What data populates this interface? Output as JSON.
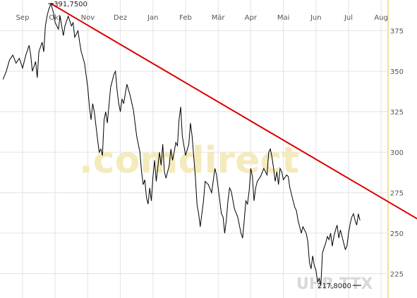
{
  "chart_data": {
    "type": "line",
    "title": "",
    "xlabel": "",
    "ylabel": "",
    "x_ticks": [
      "Sep",
      "Okt",
      "Nov",
      "Dez",
      "Jan",
      "Feb",
      "Mär",
      "Apr",
      "Mai",
      "Jun",
      "Jul",
      "Aug"
    ],
    "y_ticks": [
      225,
      250,
      275,
      300,
      325,
      350,
      375
    ],
    "ylim": [
      210,
      394
    ],
    "grid": true,
    "legend": "none",
    "watermark": ".comdirect",
    "instrument_label": "UHR TTX",
    "annotations": [
      {
        "text": "391,7500",
        "kind": "max",
        "value": 391.75,
        "x_month": 0.87
      },
      {
        "text": "217,8000",
        "kind": "min",
        "value": 217.8,
        "x_month": 10.3
      }
    ],
    "colors": {
      "price": "#000000",
      "trend": "#dd0000",
      "grid": "#e3e3e3",
      "watermark": "#f3e8b5",
      "marker": "#f0e4a0"
    },
    "series": [
      {
        "color": "#000000",
        "points": [
          [
            -0.6,
            345
          ],
          [
            -0.5,
            350
          ],
          [
            -0.4,
            357
          ],
          [
            -0.3,
            360
          ],
          [
            -0.2,
            355
          ],
          [
            -0.1,
            358
          ],
          [
            0.0,
            352
          ],
          [
            0.1,
            360
          ],
          [
            0.2,
            366
          ],
          [
            0.25,
            360
          ],
          [
            0.3,
            350
          ],
          [
            0.4,
            356
          ],
          [
            0.45,
            346
          ],
          [
            0.5,
            362
          ],
          [
            0.6,
            368
          ],
          [
            0.65,
            362
          ],
          [
            0.7,
            378
          ],
          [
            0.75,
            384
          ],
          [
            0.8,
            388
          ],
          [
            0.87,
            391.75
          ],
          [
            0.95,
            386
          ],
          [
            1.0,
            380
          ],
          [
            1.05,
            378
          ],
          [
            1.1,
            376
          ],
          [
            1.15,
            384
          ],
          [
            1.25,
            372
          ],
          [
            1.3,
            378
          ],
          [
            1.4,
            384
          ],
          [
            1.5,
            378
          ],
          [
            1.55,
            380
          ],
          [
            1.6,
            371
          ],
          [
            1.7,
            375
          ],
          [
            1.75,
            368
          ],
          [
            1.8,
            362
          ],
          [
            1.9,
            355
          ],
          [
            2.0,
            340
          ],
          [
            2.05,
            328
          ],
          [
            2.1,
            320
          ],
          [
            2.15,
            330
          ],
          [
            2.2,
            325
          ],
          [
            2.3,
            308
          ],
          [
            2.35,
            300
          ],
          [
            2.4,
            302
          ],
          [
            2.45,
            298
          ],
          [
            2.5,
            320
          ],
          [
            2.55,
            325
          ],
          [
            2.6,
            318
          ],
          [
            2.7,
            340
          ],
          [
            2.8,
            348
          ],
          [
            2.85,
            350
          ],
          [
            2.9,
            338
          ],
          [
            2.95,
            330
          ],
          [
            3.0,
            325
          ],
          [
            3.05,
            333
          ],
          [
            3.1,
            330
          ],
          [
            3.2,
            342
          ],
          [
            3.3,
            335
          ],
          [
            3.4,
            326
          ],
          [
            3.5,
            310
          ],
          [
            3.6,
            300
          ],
          [
            3.65,
            288
          ],
          [
            3.7,
            280
          ],
          [
            3.75,
            283
          ],
          [
            3.8,
            272
          ],
          [
            3.85,
            268
          ],
          [
            3.9,
            278
          ],
          [
            3.95,
            270
          ],
          [
            4.0,
            285
          ],
          [
            4.05,
            295
          ],
          [
            4.1,
            282
          ],
          [
            4.2,
            300
          ],
          [
            4.25,
            292
          ],
          [
            4.3,
            305
          ],
          [
            4.35,
            288
          ],
          [
            4.4,
            284
          ],
          [
            4.5,
            292
          ],
          [
            4.55,
            302
          ],
          [
            4.6,
            295
          ],
          [
            4.65,
            300
          ],
          [
            4.7,
            306
          ],
          [
            4.75,
            304
          ],
          [
            4.8,
            320
          ],
          [
            4.85,
            328
          ],
          [
            4.9,
            310
          ],
          [
            4.95,
            304
          ],
          [
            5.0,
            298
          ],
          [
            5.1,
            305
          ],
          [
            5.15,
            318
          ],
          [
            5.2,
            310
          ],
          [
            5.3,
            285
          ],
          [
            5.35,
            268
          ],
          [
            5.4,
            262
          ],
          [
            5.45,
            254
          ],
          [
            5.5,
            262
          ],
          [
            5.55,
            270
          ],
          [
            5.6,
            282
          ],
          [
            5.7,
            280
          ],
          [
            5.8,
            275
          ],
          [
            5.9,
            290
          ],
          [
            5.95,
            286
          ],
          [
            6.0,
            278
          ],
          [
            6.05,
            270
          ],
          [
            6.1,
            262
          ],
          [
            6.15,
            260
          ],
          [
            6.2,
            250
          ],
          [
            6.25,
            258
          ],
          [
            6.3,
            270
          ],
          [
            6.35,
            278
          ],
          [
            6.4,
            276
          ],
          [
            6.5,
            265
          ],
          [
            6.6,
            260
          ],
          [
            6.7,
            250
          ],
          [
            6.75,
            247
          ],
          [
            6.8,
            258
          ],
          [
            6.85,
            270
          ],
          [
            6.9,
            268
          ],
          [
            6.95,
            276
          ],
          [
            7.0,
            290
          ],
          [
            7.05,
            285
          ],
          [
            7.1,
            270
          ],
          [
            7.15,
            278
          ],
          [
            7.2,
            282
          ],
          [
            7.3,
            285
          ],
          [
            7.4,
            290
          ],
          [
            7.45,
            288
          ],
          [
            7.5,
            286
          ],
          [
            7.55,
            300
          ],
          [
            7.6,
            302
          ],
          [
            7.65,
            297
          ],
          [
            7.7,
            290
          ],
          [
            7.75,
            282
          ],
          [
            7.8,
            288
          ],
          [
            7.85,
            280
          ],
          [
            7.9,
            290
          ],
          [
            7.95,
            288
          ],
          [
            8.0,
            283
          ],
          [
            8.1,
            286
          ],
          [
            8.15,
            285
          ],
          [
            8.2,
            278
          ],
          [
            8.3,
            270
          ],
          [
            8.35,
            266
          ],
          [
            8.4,
            264
          ],
          [
            8.45,
            258
          ],
          [
            8.5,
            254
          ],
          [
            8.55,
            250
          ],
          [
            8.6,
            254
          ],
          [
            8.7,
            250
          ],
          [
            8.75,
            245
          ],
          [
            8.8,
            232
          ],
          [
            8.85,
            228
          ],
          [
            8.9,
            236
          ],
          [
            8.95,
            230
          ],
          [
            9.0,
            227
          ],
          [
            9.05,
            220
          ],
          [
            9.1,
            222
          ],
          [
            9.15,
            217.8
          ],
          [
            9.2,
            238
          ],
          [
            9.3,
            244
          ],
          [
            9.35,
            248
          ],
          [
            9.4,
            246
          ],
          [
            9.45,
            250
          ],
          [
            9.5,
            242
          ],
          [
            9.55,
            248
          ],
          [
            9.6,
            252
          ],
          [
            9.65,
            255
          ],
          [
            9.7,
            247
          ],
          [
            9.75,
            252
          ],
          [
            9.8,
            248
          ],
          [
            9.85,
            244
          ],
          [
            9.9,
            240
          ],
          [
            9.95,
            242
          ],
          [
            10.0,
            250
          ],
          [
            10.05,
            256
          ],
          [
            10.1,
            260
          ],
          [
            10.15,
            262
          ],
          [
            10.2,
            258
          ],
          [
            10.25,
            255
          ],
          [
            10.3,
            262
          ],
          [
            10.35,
            258
          ]
        ]
      },
      {
        "color": "#dd0000",
        "points": [
          [
            0.87,
            391.75
          ],
          [
            11.0,
            272
          ]
        ]
      }
    ]
  }
}
